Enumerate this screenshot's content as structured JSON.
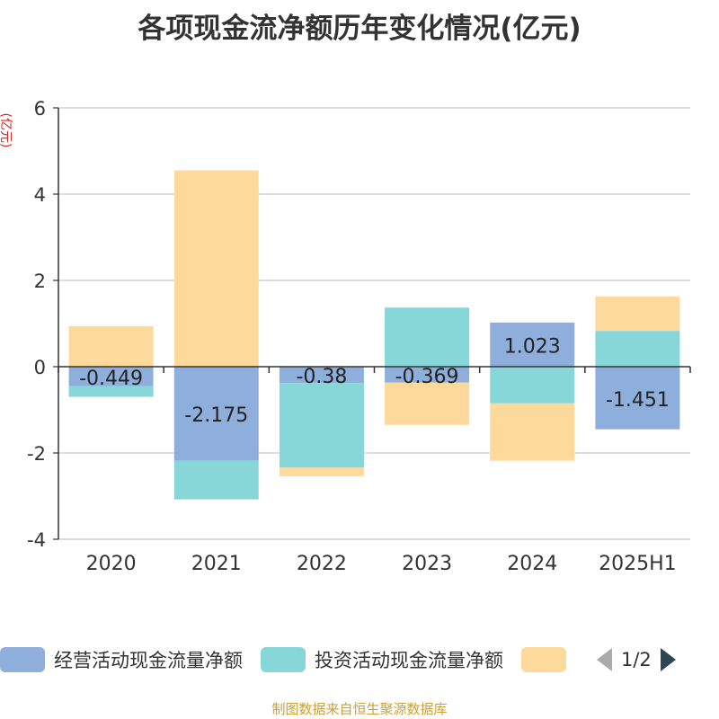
{
  "chart_data": {
    "type": "bar",
    "stacked": true,
    "title": "各项现金流净额历年变化情况(亿元)",
    "ylabel": "(亿元)",
    "categories": [
      "2020",
      "2021",
      "2022",
      "2023",
      "2024",
      "2025H1"
    ],
    "ylim": [
      -4,
      6
    ],
    "yticks": [
      -4,
      -2,
      0,
      2,
      4,
      6
    ],
    "grid": true,
    "legend_position": "bottom",
    "series": [
      {
        "name": "经营活动现金流量净额",
        "color": "#8eaedb",
        "values": [
          -0.449,
          -2.175,
          -0.38,
          -0.369,
          1.023,
          -1.451
        ],
        "show_labels": true
      },
      {
        "name": "投资活动现金流量净额",
        "color": "#87d6d8",
        "values": [
          -0.25,
          -0.9,
          -1.96,
          1.37,
          -0.85,
          0.83
        ],
        "show_labels": false
      },
      {
        "name": "",
        "color": "#fed99c",
        "values": [
          0.94,
          4.55,
          -0.2,
          -0.98,
          -1.33,
          0.8
        ],
        "show_labels": false
      }
    ]
  },
  "legend": {
    "items": [
      "经营活动现金流量净额",
      "投资活动现金流量净额",
      ""
    ],
    "page": "1/2"
  },
  "source": "制图数据来自恒生聚源数据库"
}
